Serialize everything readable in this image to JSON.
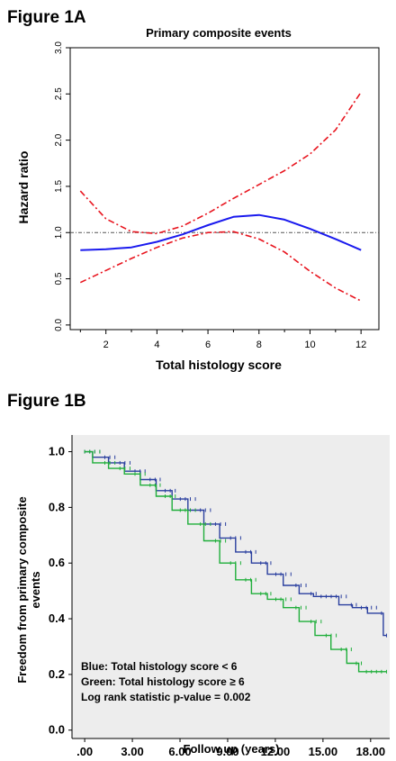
{
  "figure_a_label": "Figure 1A",
  "figure_b_label": "Figure 1B",
  "chart_data": [
    {
      "type": "line",
      "title": "Primary composite events",
      "xlabel": "Total histology score",
      "ylabel": "Hazard ratio",
      "xlim": [
        0.6,
        12.7
      ],
      "ylim": [
        -0.05,
        3.0
      ],
      "x_ticks": [
        "2",
        "4",
        "6",
        "8",
        "10",
        "12"
      ],
      "y_ticks": [
        "0.0",
        "0.5",
        "1.0",
        "1.5",
        "2.0",
        "2.5",
        "3.0"
      ],
      "reference_line": 1.0,
      "colors": {
        "estimate": "#1a1aee",
        "ci": "#e8141e",
        "reference": "#555555"
      },
      "series": [
        {
          "role": "estimate",
          "style": "solid",
          "x": [
            1,
            2,
            3,
            4,
            5,
            6,
            7,
            8,
            9,
            10,
            11,
            12
          ],
          "y": [
            0.81,
            0.82,
            0.84,
            0.9,
            0.98,
            1.08,
            1.17,
            1.19,
            1.14,
            1.04,
            0.93,
            0.81
          ]
        },
        {
          "role": "upper_ci",
          "style": "dashdot",
          "x": [
            1,
            2,
            3,
            4,
            5,
            6,
            7,
            8,
            9,
            10,
            11,
            12
          ],
          "y": [
            1.45,
            1.15,
            1.01,
            0.99,
            1.07,
            1.21,
            1.37,
            1.52,
            1.67,
            1.85,
            2.11,
            2.52
          ]
        },
        {
          "role": "lower_ci",
          "style": "dashdot",
          "x": [
            1,
            2,
            3,
            4,
            5,
            6,
            7,
            8,
            9,
            10,
            11,
            12
          ],
          "y": [
            0.46,
            0.59,
            0.72,
            0.84,
            0.94,
            1.0,
            1.01,
            0.93,
            0.79,
            0.58,
            0.4,
            0.26
          ]
        }
      ]
    },
    {
      "type": "line",
      "title": "",
      "xlabel": "Follow up (years)",
      "ylabel": "Freedom from primary composite events",
      "ylabel_lines": [
        "Freedom from primary composite",
        "events"
      ],
      "xlim": [
        -0.8,
        19.2
      ],
      "ylim": [
        -0.03,
        1.06
      ],
      "x_ticks": [
        ".00",
        "3.00",
        "6.00",
        "9.00",
        "12.00",
        "15.00",
        "18.00"
      ],
      "y_ticks": [
        "0.0",
        "0.2",
        "0.4",
        "0.6",
        "0.8",
        "1.0"
      ],
      "annotations": [
        "Blue: Total histology score < 6",
        "Green: Total histology score ≥ 6",
        "Log rank statistic p-value = 0.002"
      ],
      "colors": {
        "blue": "#2a3f9f",
        "green": "#1fae3a",
        "plot_bg": "#ededed"
      },
      "series": [
        {
          "color": "blue",
          "x": [
            0,
            1,
            2,
            3,
            4,
            5,
            6,
            7,
            8,
            9,
            10,
            11,
            12,
            13,
            14,
            14.8,
            15.5,
            16.5,
            17.2,
            18.4,
            18.8,
            18.8,
            19.0
          ],
          "y": [
            1.0,
            0.98,
            0.96,
            0.93,
            0.9,
            0.86,
            0.83,
            0.79,
            0.74,
            0.69,
            0.64,
            0.6,
            0.56,
            0.52,
            0.49,
            0.48,
            0.48,
            0.45,
            0.44,
            0.42,
            0.42,
            0.34,
            0.34
          ]
        },
        {
          "color": "green",
          "x": [
            0,
            1,
            2,
            3,
            4,
            5,
            6,
            7,
            8,
            9,
            10,
            11,
            12,
            13,
            14,
            15,
            16,
            17,
            17.5,
            18.2,
            19.0
          ],
          "y": [
            1.0,
            0.96,
            0.94,
            0.92,
            0.88,
            0.84,
            0.79,
            0.74,
            0.68,
            0.6,
            0.54,
            0.49,
            0.47,
            0.44,
            0.39,
            0.34,
            0.29,
            0.24,
            0.21,
            0.21,
            0.21
          ]
        }
      ]
    }
  ]
}
